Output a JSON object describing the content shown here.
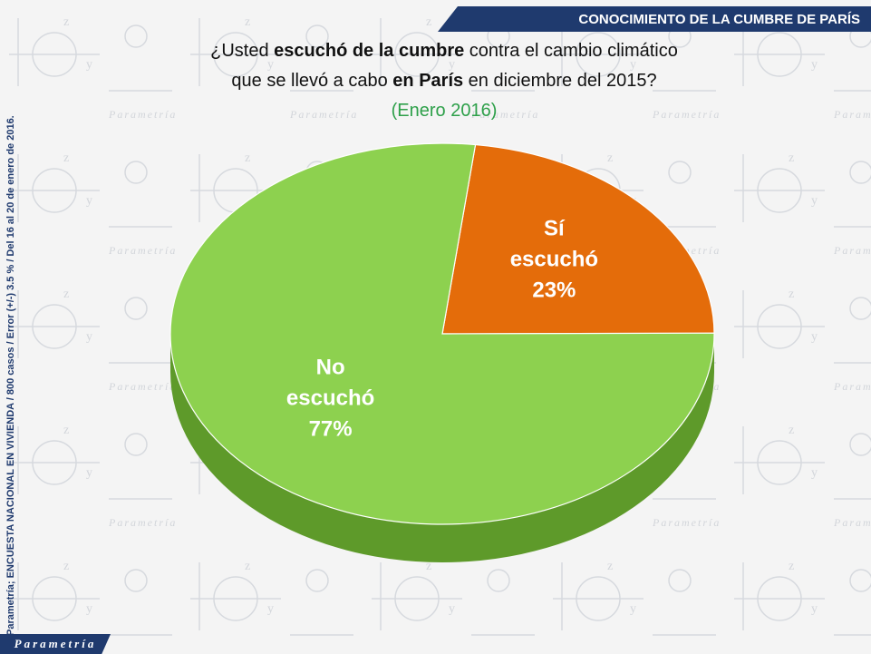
{
  "header": {
    "title": "CONOCIMIENTO DE LA CUMBRE DE PARÍS"
  },
  "question": {
    "l1_a": "¿Usted ",
    "l1_b": "escuchó de la cumbre",
    "l1_c": " contra el cambio climático",
    "l2_a": "que se llevó a cabo ",
    "l2_b": "en París",
    "l2_c": " en diciembre del 2015?",
    "date": "(Enero 2016)"
  },
  "side_note": "Parametría; ENCUESTA NACIONAL EN VIVIENDA / 800 casos / Error (+/-) 3.5 % / Del 16 al 20 de enero de 2016.",
  "logo": "Parametría",
  "chart_data": {
    "type": "pie",
    "categories": [
      "Sí escuchó",
      "No escuchó"
    ],
    "values": [
      23,
      77
    ],
    "labels": [
      {
        "line1": "Sí",
        "line2": "escuchó",
        "value_label": "23%"
      },
      {
        "line1": "No",
        "line2": "escuchó",
        "value_label": "77%"
      }
    ],
    "colors": [
      "#e46c0a",
      "#8dd14f"
    ],
    "side_colors": [
      "#a34c05",
      "#5e9a2a"
    ],
    "title": "",
    "legend": "none"
  }
}
